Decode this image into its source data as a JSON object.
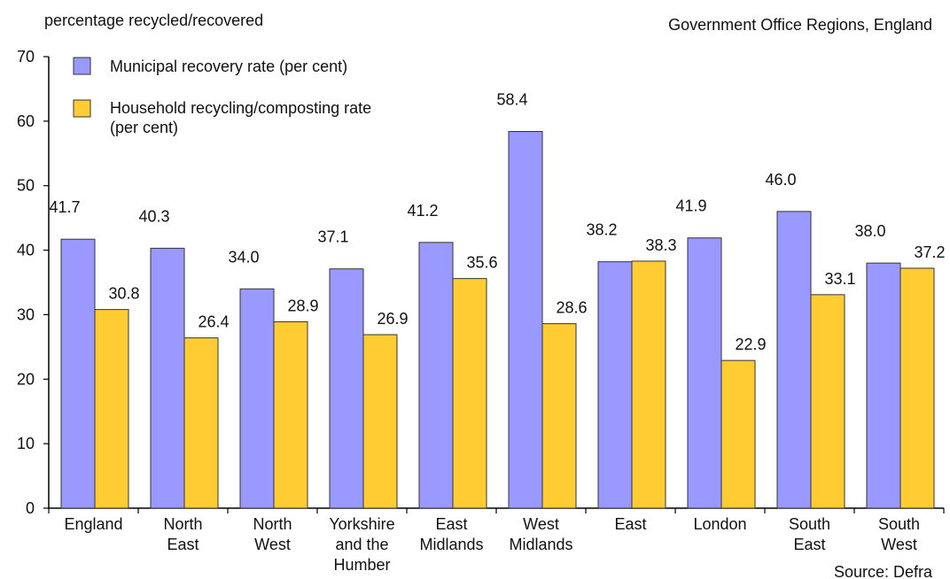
{
  "header": {
    "ylabel_top": "percentage recycled/recovered",
    "subtitle_right": "Government Office Regions, England"
  },
  "footer": {
    "source": "Source: Defra"
  },
  "colors": {
    "municipal": "#9999ff",
    "household": "#ffcc33",
    "bar_edge": "#333333"
  },
  "chart_data": {
    "type": "bar",
    "title": "",
    "xlabel": "",
    "ylabel": "percentage recycled/recovered",
    "ylim": [
      0,
      70
    ],
    "yticks": [
      0,
      10,
      20,
      30,
      40,
      50,
      60,
      70
    ],
    "grid": false,
    "legend_placement": "top-left",
    "categories": [
      [
        "England"
      ],
      [
        "North",
        "East"
      ],
      [
        "North",
        "West"
      ],
      [
        "Yorkshire",
        "and the",
        "Humber"
      ],
      [
        "East",
        "Midlands"
      ],
      [
        "West",
        "Midlands"
      ],
      [
        "East"
      ],
      [
        "London"
      ],
      [
        "South",
        "East"
      ],
      [
        "South",
        "West"
      ]
    ],
    "series": [
      {
        "name": "Municipal recovery rate (per cent)",
        "values": [
          41.7,
          40.3,
          34.0,
          37.1,
          41.2,
          58.4,
          38.2,
          41.9,
          46.0,
          38.0
        ],
        "labels": [
          "41.7",
          "40.3",
          "34.0",
          "37.1",
          "41.2",
          "58.4",
          "38.2",
          "41.9",
          "46.0",
          "38.0"
        ]
      },
      {
        "name": "Household recycling/composting rate (per cent)",
        "legend_lines": [
          "Household recycling/composting rate",
          "(per cent)"
        ],
        "values": [
          30.8,
          26.4,
          28.9,
          26.9,
          35.6,
          28.6,
          38.3,
          22.9,
          33.1,
          37.2
        ],
        "labels": [
          "30.8",
          "26.4",
          "28.9",
          "26.9",
          "35.6",
          "28.6",
          "38.3",
          "22.9",
          "33.1",
          "37.2"
        ]
      }
    ]
  }
}
